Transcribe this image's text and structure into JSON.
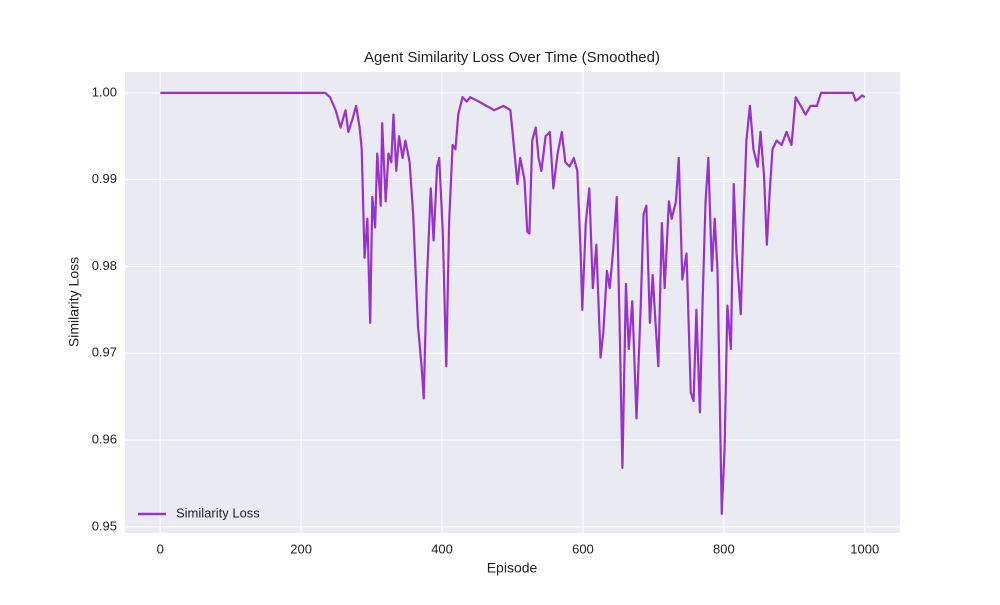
{
  "chart_data": {
    "type": "line",
    "title": "Agent Similarity Loss Over Time (Smoothed)",
    "x_label": "Episode",
    "y_label": "Similarity Loss",
    "x": [
      0,
      234,
      241,
      249,
      256,
      263,
      267,
      273,
      278,
      283,
      286,
      290,
      294,
      298,
      301,
      305,
      308,
      313,
      315,
      320,
      324,
      328,
      331,
      335,
      339,
      344,
      348,
      354,
      359,
      364,
      366,
      371,
      374,
      378,
      384,
      388,
      393,
      396,
      401,
      406,
      410,
      415,
      419,
      423,
      429,
      435,
      440,
      452,
      463,
      474,
      487,
      497,
      503,
      507,
      511,
      517,
      521,
      524,
      528,
      533,
      537,
      541,
      547,
      553,
      558,
      564,
      570,
      575,
      581,
      587,
      592,
      597,
      599,
      604,
      609,
      614,
      619,
      625,
      629,
      634,
      638,
      643,
      648,
      652,
      656,
      661,
      665,
      670,
      676,
      682,
      686,
      690,
      695,
      699,
      703,
      707,
      712,
      716,
      722,
      726,
      732,
      736,
      741,
      747,
      753,
      757,
      761,
      766,
      770,
      774,
      778,
      783,
      787,
      791,
      797,
      801,
      805,
      810,
      814,
      818,
      824,
      828,
      832,
      837,
      842,
      848,
      852,
      857,
      861,
      865,
      869,
      875,
      882,
      889,
      896,
      902,
      909,
      916,
      923,
      932,
      938,
      952,
      973,
      983,
      987,
      991,
      996,
      1000
    ],
    "series": [
      {
        "name": "Similarity Loss",
        "color": "#9932cc",
        "values": [
          1.0,
          1.0,
          0.9995,
          0.998,
          0.996,
          0.998,
          0.9955,
          0.997,
          0.9985,
          0.996,
          0.9935,
          0.981,
          0.9855,
          0.9735,
          0.988,
          0.9845,
          0.993,
          0.987,
          0.9965,
          0.9875,
          0.993,
          0.992,
          0.9975,
          0.991,
          0.995,
          0.9925,
          0.9945,
          0.992,
          0.986,
          0.9765,
          0.973,
          0.9685,
          0.9648,
          0.9775,
          0.989,
          0.983,
          0.9915,
          0.9925,
          0.984,
          0.9685,
          0.985,
          0.994,
          0.9935,
          0.9975,
          0.9995,
          0.999,
          0.9995,
          0.999,
          0.9985,
          0.998,
          0.9985,
          0.998,
          0.993,
          0.9895,
          0.9925,
          0.99,
          0.984,
          0.9838,
          0.9945,
          0.996,
          0.9925,
          0.991,
          0.995,
          0.9955,
          0.989,
          0.993,
          0.9955,
          0.992,
          0.9915,
          0.9925,
          0.991,
          0.981,
          0.975,
          0.985,
          0.989,
          0.9775,
          0.9825,
          0.9695,
          0.9725,
          0.9795,
          0.9775,
          0.982,
          0.988,
          0.9735,
          0.9568,
          0.978,
          0.9705,
          0.976,
          0.9625,
          0.9755,
          0.986,
          0.987,
          0.9735,
          0.979,
          0.9735,
          0.9685,
          0.985,
          0.9775,
          0.9875,
          0.9855,
          0.9875,
          0.9925,
          0.9785,
          0.9815,
          0.9655,
          0.9645,
          0.975,
          0.9632,
          0.9765,
          0.9875,
          0.9925,
          0.9795,
          0.9855,
          0.9795,
          0.9515,
          0.959,
          0.9755,
          0.9705,
          0.9895,
          0.9815,
          0.9745,
          0.9855,
          0.9945,
          0.9985,
          0.9935,
          0.9915,
          0.9955,
          0.9905,
          0.9825,
          0.9885,
          0.9935,
          0.9945,
          0.994,
          0.9955,
          0.994,
          0.9995,
          0.9985,
          0.9975,
          0.9985,
          0.9985,
          1.0,
          1.0,
          1.0,
          1.0,
          0.9991,
          0.9993,
          0.9997,
          0.9995
        ]
      }
    ],
    "xlim": [
      -50,
      1050
    ],
    "ylim": [
      0.9493,
      1.0024
    ],
    "xticks": [
      0,
      200,
      400,
      600,
      800,
      1000
    ],
    "yticks": [
      0.95,
      0.96,
      0.97,
      0.98,
      0.99,
      {
        "value": 1,
        "label": "1.00"
      }
    ],
    "grid": true,
    "legend": "lower left"
  }
}
